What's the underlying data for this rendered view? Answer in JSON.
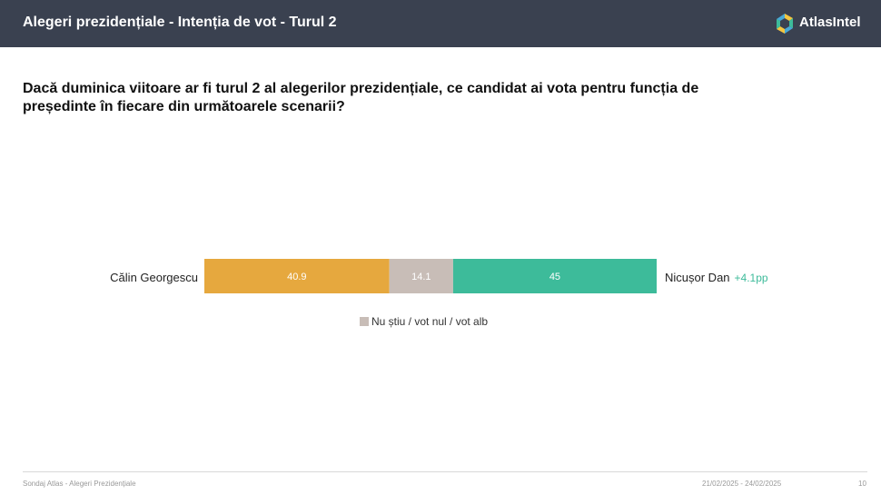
{
  "header": {
    "title": "Alegeri prezidențiale - Intenția de vot - Turul 2",
    "brand": "AtlasIntel",
    "background": "#3a4150"
  },
  "question": "Dacă duminica viitoare ar fi turul 2 al alegerilor prezidențiale, ce candidat ai vota pentru funcția de președinte în fiecare din următoarele scenarii?",
  "chart_data": {
    "type": "bar",
    "orientation": "horizontal-stacked",
    "categories": [
      "Călin Georgescu vs Nicușor Dan"
    ],
    "series": [
      {
        "name": "Călin Georgescu",
        "values": [
          40.9
        ],
        "color": "#e6a83e",
        "label": "40.9"
      },
      {
        "name": "Nu știu / vot nul / vot alb",
        "values": [
          14.1
        ],
        "color": "#c8bdb7",
        "label": "14.1"
      },
      {
        "name": "Nicușor Dan",
        "values": [
          45
        ],
        "color": "#3dbb9a",
        "label": "45"
      }
    ],
    "left_label": "Călin Georgescu",
    "right_label": "Nicușor Dan",
    "right_diff": "+4.1pp",
    "right_diff_color": "#3dbb9a",
    "legend": "Nu știu / vot nul / vot alb",
    "legend_placement": "bottom-center",
    "xlim": [
      0,
      100
    ]
  },
  "footer": {
    "source": "Sondaj Atlas - Alegeri Prezidențiale",
    "date": "21/02/2025 - 24/02/2025",
    "page": "10"
  }
}
